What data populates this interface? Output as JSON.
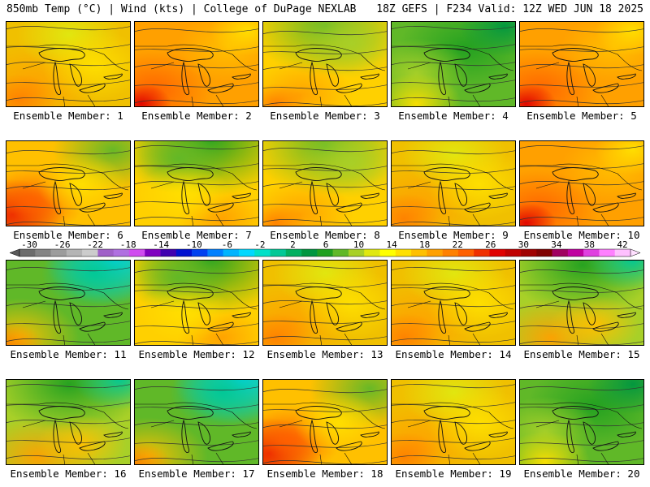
{
  "header": {
    "left": "850mb Temp (°C) | Wind (kts) | College of DuPage NEXLAB",
    "right": "18Z GEFS | F234 Valid: 12Z WED JUN 18 2025"
  },
  "colorbar": {
    "ticks": [
      "-30",
      "-26",
      "-22",
      "-18",
      "-14",
      "-10",
      "-6",
      "-2",
      "2",
      "6",
      "10",
      "14",
      "18",
      "22",
      "26",
      "30",
      "34",
      "38",
      "42"
    ],
    "colors": [
      "#6c6c6c",
      "#848484",
      "#9c9c9c",
      "#b4b4b4",
      "#cccccc",
      "#a060c8",
      "#b070e0",
      "#d04cf0",
      "#8000c0",
      "#4000b0",
      "#0010d0",
      "#0040f0",
      "#0080ff",
      "#00b4ff",
      "#00d8ff",
      "#00e0c8",
      "#00c896",
      "#00b060",
      "#009640",
      "#20a020",
      "#60b828",
      "#a8d028",
      "#e0e810",
      "#ffff00",
      "#ffe000",
      "#ffc000",
      "#ffa000",
      "#ff8000",
      "#ff6000",
      "#f03000",
      "#e00000",
      "#c00000",
      "#a00000",
      "#800000",
      "#a00060",
      "#c000a0",
      "#e040e0",
      "#ff80ff",
      "#ffc0ff"
    ]
  },
  "members": [
    {
      "label": "Ensemble Member: 1",
      "palette": "warm-yellow"
    },
    {
      "label": "Ensemble Member: 2",
      "palette": "hot-orange"
    },
    {
      "label": "Ensemble Member: 3",
      "palette": "yellow-green-top"
    },
    {
      "label": "Ensemble Member: 4",
      "palette": "green"
    },
    {
      "label": "Ensemble Member: 5",
      "palette": "hot-orange"
    },
    {
      "label": "Ensemble Member: 6",
      "palette": "hot-southwest"
    },
    {
      "label": "Ensemble Member: 7",
      "palette": "green-top-yellow"
    },
    {
      "label": "Ensemble Member: 8",
      "palette": "yellow-green-top"
    },
    {
      "label": "Ensemble Member: 9",
      "palette": "warm-yellow"
    },
    {
      "label": "Ensemble Member: 10",
      "palette": "hot-orange"
    },
    {
      "label": "Ensemble Member: 11",
      "palette": "cold-cyan"
    },
    {
      "label": "Ensemble Member: 12",
      "palette": "green-top-yellow"
    },
    {
      "label": "Ensemble Member: 13",
      "palette": "warm-yellow"
    },
    {
      "label": "Ensemble Member: 14",
      "palette": "warm-yellow"
    },
    {
      "label": "Ensemble Member: 15",
      "palette": "green-top-cyan"
    },
    {
      "label": "Ensemble Member: 16",
      "palette": "green-top-cyan"
    },
    {
      "label": "Ensemble Member: 17",
      "palette": "cold-cyan"
    },
    {
      "label": "Ensemble Member: 18",
      "palette": "hot-southwest"
    },
    {
      "label": "Ensemble Member: 19",
      "palette": "warm-yellow"
    },
    {
      "label": "Ensemble Member: 20",
      "palette": "green"
    }
  ]
}
